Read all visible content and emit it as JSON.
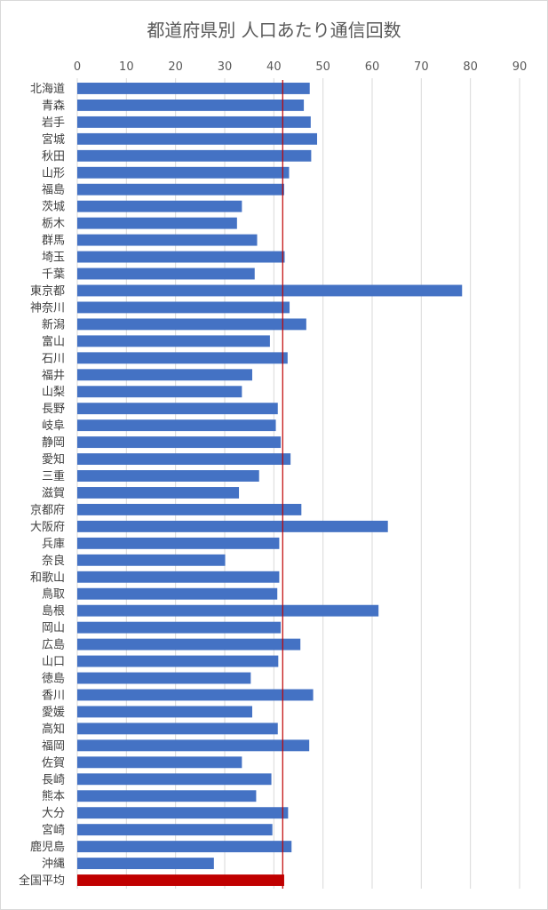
{
  "chart_data": {
    "type": "bar",
    "orientation": "horizontal",
    "title": "都道府県別 人口あたり通信回数",
    "xlim": [
      0,
      90
    ],
    "xticks": [
      0,
      10,
      20,
      30,
      40,
      50,
      60,
      70,
      80,
      90
    ],
    "axis_position": "top",
    "grid": true,
    "bar_color": "#4472c4",
    "highlight_color": "#c00000",
    "reference_line": {
      "value": 41.8,
      "color": "#c00000"
    },
    "categories": [
      "北海道",
      "青森",
      "岩手",
      "宮城",
      "秋田",
      "山形",
      "福島",
      "茨城",
      "栃木",
      "群馬",
      "埼玉",
      "千葉",
      "東京都",
      "神奈川",
      "新潟",
      "富山",
      "石川",
      "福井",
      "山梨",
      "長野",
      "岐阜",
      "静岡",
      "愛知",
      "三重",
      "滋賀",
      "京都府",
      "大阪府",
      "兵庫",
      "奈良",
      "和歌山",
      "鳥取",
      "島根",
      "岡山",
      "広島",
      "山口",
      "徳島",
      "香川",
      "愛媛",
      "高知",
      "福岡",
      "佐賀",
      "長崎",
      "熊本",
      "大分",
      "宮崎",
      "鹿児島",
      "沖縄",
      "全国平均"
    ],
    "values": [
      47.3,
      46.1,
      47.5,
      48.8,
      47.6,
      43.1,
      42.1,
      33.5,
      32.5,
      36.6,
      42.2,
      36.1,
      78.3,
      43.2,
      46.6,
      39.2,
      42.8,
      35.6,
      33.5,
      40.8,
      40.4,
      41.4,
      43.4,
      37.0,
      32.9,
      45.6,
      63.2,
      41.1,
      30.1,
      41.1,
      40.7,
      61.3,
      41.4,
      45.4,
      40.9,
      35.3,
      48.0,
      35.6,
      40.8,
      47.2,
      33.5,
      39.5,
      36.4,
      42.9,
      39.7,
      43.6,
      27.8,
      42.1
    ],
    "highlight_index": 47
  }
}
